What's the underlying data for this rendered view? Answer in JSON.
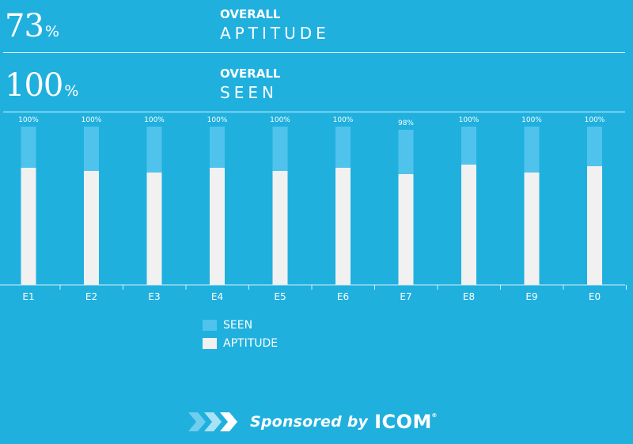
{
  "stats": [
    {
      "value": "73",
      "unit": "%",
      "overall": "OVERALL",
      "name": "APTITUDE"
    },
    {
      "value": "100",
      "unit": "%",
      "overall": "OVERALL",
      "name": "SEEN"
    }
  ],
  "legend": {
    "seen": "SEEN",
    "aptitude": "APTITUDE"
  },
  "sponsor": {
    "text": "Sponsored by",
    "brand": "ICOM",
    "reg": "®"
  },
  "colors": {
    "background": "#1fb0de",
    "seen": "#4fc3ec",
    "aptitude": "#f1f1f1",
    "axis": "#d8f1fa"
  },
  "chart_data": {
    "type": "bar",
    "categories": [
      "E1",
      "E2",
      "E3",
      "E4",
      "E5",
      "E6",
      "E7",
      "E8",
      "E9",
      "E0"
    ],
    "ylim": [
      0,
      100
    ],
    "series": [
      {
        "name": "SEEN",
        "values": [
          100,
          100,
          100,
          100,
          100,
          100,
          98,
          100,
          100,
          100
        ]
      },
      {
        "name": "APTITUDE",
        "values": [
          74,
          72,
          71,
          74,
          72,
          74,
          70,
          76,
          71,
          75
        ]
      }
    ],
    "data_labels": [
      "100%",
      "100%",
      "100%",
      "100%",
      "100%",
      "100%",
      "98%",
      "100%",
      "100%",
      "100%"
    ],
    "legend_position": "bottom-left",
    "grid": false
  }
}
